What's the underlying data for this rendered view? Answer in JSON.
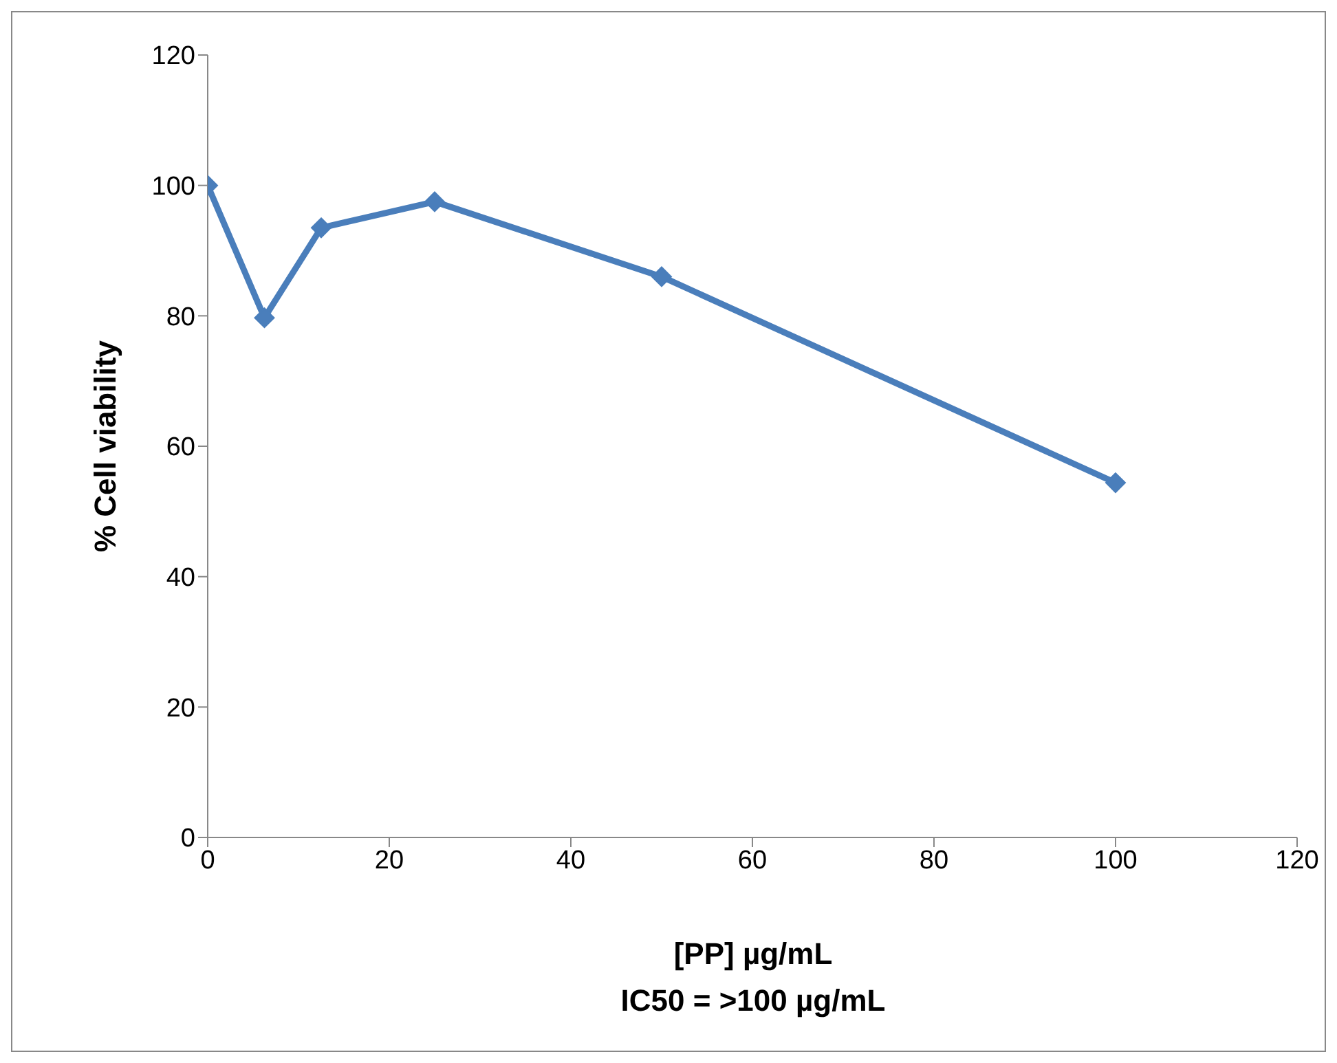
{
  "chart_data": {
    "type": "line",
    "xlabel": "[PP] µg/mL",
    "ylabel": "% Cell viability",
    "annotations": [
      "IC50 = >100 µg/mL"
    ],
    "x": [
      0,
      6.25,
      12.5,
      25,
      50,
      100
    ],
    "series": [
      {
        "color": "#4a7ebb",
        "values": [
          100,
          79.7,
          93.5,
          97.5,
          86,
          54.4
        ]
      }
    ],
    "xlim": [
      0,
      120
    ],
    "xticks": [
      0,
      20,
      40,
      60,
      80,
      100,
      120
    ],
    "ylim": [
      0,
      120
    ],
    "yticks": [
      0,
      20,
      40,
      60,
      80,
      100,
      120
    ],
    "grid": false,
    "legend": false,
    "marker": "diamond",
    "line_style": "solid"
  }
}
